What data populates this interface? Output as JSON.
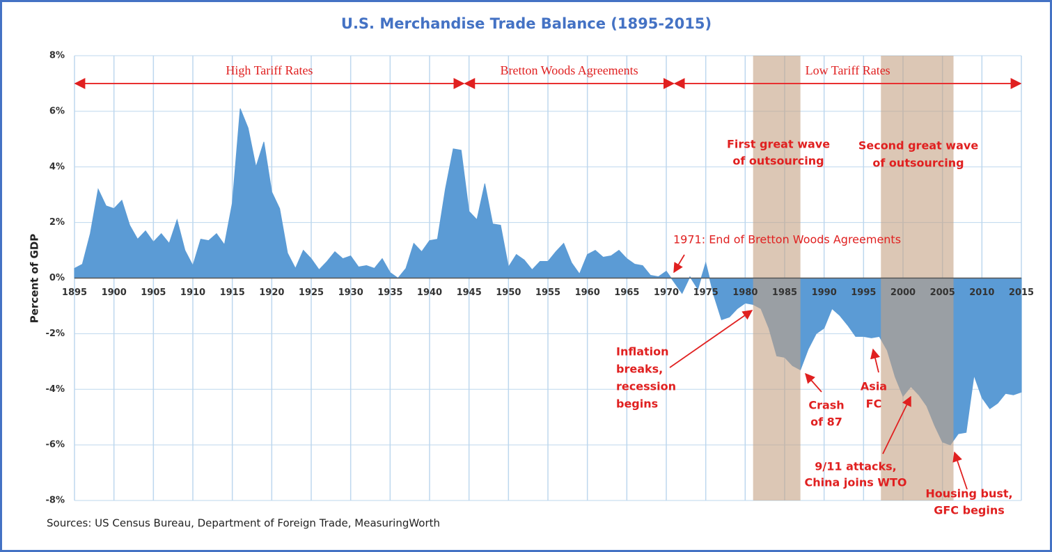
{
  "chart_data": {
    "type": "area",
    "title": "U.S. Merchandise Trade Balance (1895-2015)",
    "y_label": "Percent of GDP",
    "source": "Sources: US Census Bureau, Department of Foreign Trade, MeasuringWorth",
    "color": "#5b9bd5",
    "x": [
      1895,
      1896,
      1897,
      1898,
      1899,
      1900,
      1901,
      1902,
      1903,
      1904,
      1905,
      1906,
      1907,
      1908,
      1909,
      1910,
      1911,
      1912,
      1913,
      1914,
      1915,
      1916,
      1917,
      1918,
      1919,
      1920,
      1921,
      1922,
      1923,
      1924,
      1925,
      1926,
      1927,
      1928,
      1929,
      1930,
      1931,
      1932,
      1933,
      1934,
      1935,
      1936,
      1937,
      1938,
      1939,
      1940,
      1941,
      1942,
      1943,
      1944,
      1945,
      1946,
      1947,
      1948,
      1949,
      1950,
      1951,
      1952,
      1953,
      1954,
      1955,
      1956,
      1957,
      1958,
      1959,
      1960,
      1961,
      1962,
      1963,
      1964,
      1965,
      1966,
      1967,
      1968,
      1969,
      1970,
      1971,
      1972,
      1973,
      1974,
      1975,
      1976,
      1977,
      1978,
      1979,
      1980,
      1981,
      1982,
      1983,
      1984,
      1985,
      1986,
      1987,
      1988,
      1989,
      1990,
      1991,
      1992,
      1993,
      1994,
      1995,
      1996,
      1997,
      1998,
      1999,
      2000,
      2001,
      2002,
      2003,
      2004,
      2005,
      2006,
      2007,
      2008,
      2009,
      2010,
      2011,
      2012,
      2013,
      2014,
      2015
    ],
    "values": [
      0.35,
      0.5,
      1.6,
      3.2,
      2.6,
      2.5,
      2.8,
      1.9,
      1.4,
      1.7,
      1.3,
      1.6,
      1.25,
      2.1,
      1.0,
      0.45,
      1.4,
      1.35,
      1.6,
      1.2,
      2.7,
      6.1,
      5.4,
      4.0,
      4.9,
      3.1,
      2.5,
      0.9,
      0.35,
      1.0,
      0.7,
      0.3,
      0.6,
      0.95,
      0.7,
      0.8,
      0.4,
      0.45,
      0.35,
      0.7,
      0.2,
      0.0,
      0.35,
      1.25,
      0.95,
      1.35,
      1.4,
      3.2,
      4.65,
      4.6,
      2.4,
      2.1,
      3.4,
      1.95,
      1.9,
      0.4,
      0.85,
      0.65,
      0.3,
      0.6,
      0.6,
      0.95,
      1.25,
      0.55,
      0.15,
      0.85,
      1.0,
      0.75,
      0.8,
      1.0,
      0.7,
      0.5,
      0.45,
      0.1,
      0.05,
      0.25,
      -0.15,
      -0.55,
      0.05,
      -0.4,
      0.55,
      -0.6,
      -1.5,
      -1.4,
      -1.1,
      -0.9,
      -0.95,
      -1.1,
      -1.8,
      -2.8,
      -2.85,
      -3.15,
      -3.3,
      -2.55,
      -2.0,
      -1.8,
      -1.1,
      -1.35,
      -1.7,
      -2.1,
      -2.1,
      -2.15,
      -2.1,
      -2.6,
      -3.55,
      -4.25,
      -3.9,
      -4.2,
      -4.6,
      -5.3,
      -5.9,
      -6.0,
      -5.6,
      -5.55,
      -3.5,
      -4.3,
      -4.7,
      -4.5,
      -4.15,
      -4.2,
      -4.1
    ],
    "xlim": [
      1895,
      2015
    ],
    "xticks": [
      1895,
      1900,
      1905,
      1910,
      1915,
      1920,
      1925,
      1930,
      1935,
      1940,
      1945,
      1950,
      1955,
      1960,
      1965,
      1970,
      1975,
      1980,
      1985,
      1990,
      1995,
      2000,
      2005,
      2010,
      2015
    ],
    "ylim": [
      -8,
      8
    ],
    "yticks": [
      {
        "value": -8,
        "label": "-8%"
      },
      {
        "value": -6,
        "label": "-6%"
      },
      {
        "value": -4,
        "label": "-4%"
      },
      {
        "value": -2,
        "label": "-2%"
      },
      {
        "value": 0,
        "label": "0%"
      },
      {
        "value": 2,
        "label": "2%"
      },
      {
        "value": 4,
        "label": "4%"
      },
      {
        "value": 6,
        "label": "6%"
      },
      {
        "value": 8,
        "label": "8%"
      }
    ],
    "grid": true,
    "periods": [
      {
        "label": "High Tariff Rates",
        "start": 1895,
        "end": 1944.4
      },
      {
        "label": "Bretton Woods Agreements",
        "start": 1944.4,
        "end": 1971
      },
      {
        "label": "Low Tariff Rates",
        "start": 1971,
        "end": 2015
      }
    ],
    "highlight_ranges": [
      {
        "start": 1981,
        "end": 1987
      },
      {
        "start": 1997.2,
        "end": 2006.4
      }
    ],
    "annotations": [
      {
        "lines": [
          "1971: End of Bretton Woods Agreements"
        ]
      },
      {
        "lines": [
          "First great wave",
          "of outsourcing"
        ]
      },
      {
        "lines": [
          "Second great wave",
          "of outsourcing"
        ]
      },
      {
        "lines": [
          "Inflation",
          "breaks,",
          "recession",
          "begins"
        ]
      },
      {
        "lines": [
          "Crash",
          "of 87"
        ]
      },
      {
        "lines": [
          "Asia",
          "FC"
        ]
      },
      {
        "lines": [
          "9/11 attacks,",
          "China joins WTO"
        ]
      },
      {
        "lines": [
          "Housing bust,",
          "GFC begins"
        ]
      }
    ]
  }
}
